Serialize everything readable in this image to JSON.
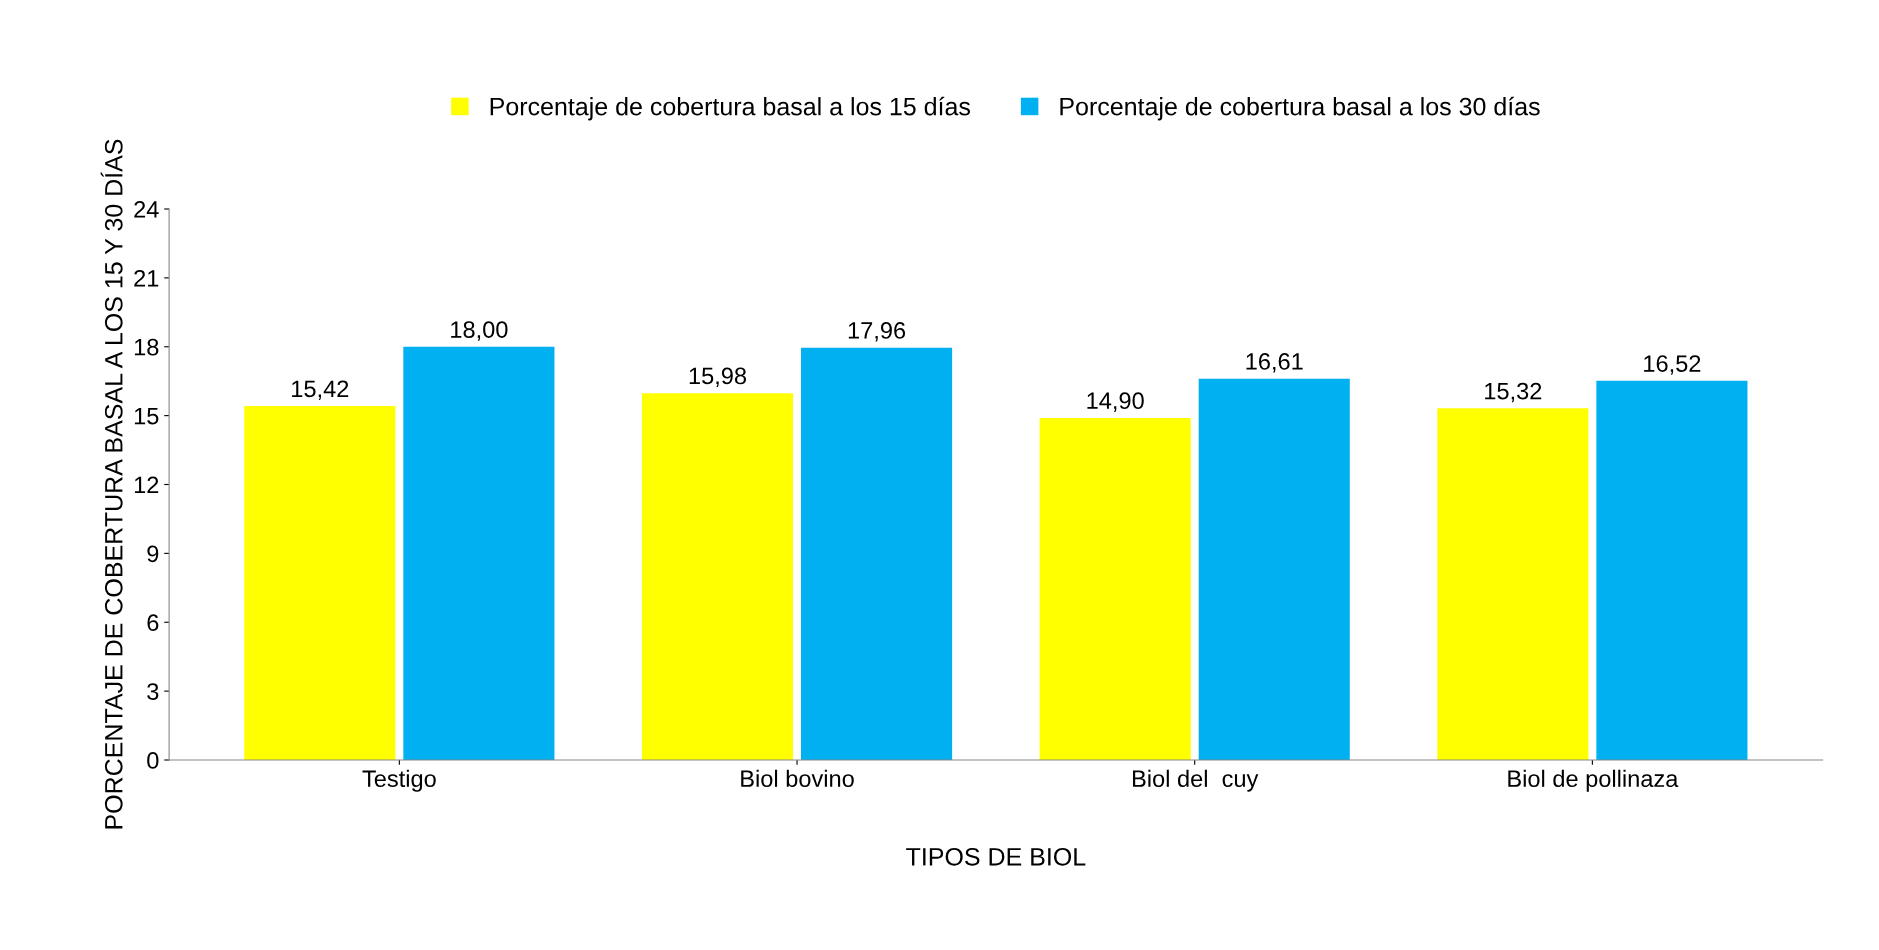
{
  "chart_data": {
    "type": "bar",
    "xlabel": "TIPOS DE BIOL",
    "ylabel": "PORCENTAJE DE COBERTURA BASAL A LOS 15 Y 30 DÍAS",
    "categories": [
      "Testigo",
      "Biol bovino",
      "Biol del  cuy",
      "Biol de pollinaza"
    ],
    "series": [
      {
        "name": "Porcentaje de cobertura basal a los 15 días",
        "color": "#ffff00",
        "values": [
          15.42,
          15.98,
          14.9,
          15.32
        ],
        "value_labels": [
          "15,42",
          "15,98",
          "14,90",
          "15,32"
        ]
      },
      {
        "name": "Porcentaje de cobertura basal a los 30 días",
        "color": "#00b0f0",
        "values": [
          18.0,
          17.96,
          16.61,
          16.52
        ],
        "value_labels": [
          "18,00",
          "17,96",
          "16,61",
          "16,52"
        ]
      }
    ],
    "ylim": [
      0,
      24
    ],
    "yticks": [
      0,
      3,
      6,
      9,
      12,
      15,
      18,
      21,
      24
    ],
    "grid": false,
    "legend": "top"
  }
}
